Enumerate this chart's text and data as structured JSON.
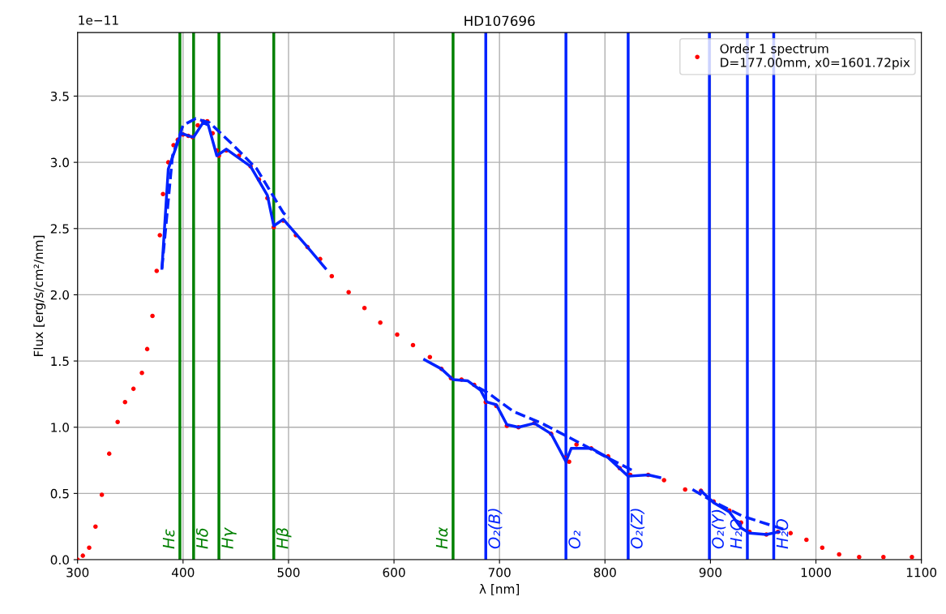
{
  "chart_data": {
    "type": "scatter",
    "title": "HD107696",
    "xlabel": "λ [nm]",
    "ylabel": "Flux [erg/s/cm²/nm]",
    "annotations": [
      "1e−11"
    ],
    "xlim": [
      300,
      1100
    ],
    "xticks": [
      300,
      400,
      500,
      600,
      700,
      800,
      900,
      1000,
      1100
    ],
    "ylim": [
      0,
      3.98
    ],
    "yticks": [
      {
        "value": 0,
        "label": "0.0"
      },
      0.5,
      {
        "value": 1,
        "label": "1.0"
      },
      1.5,
      {
        "value": 2,
        "label": "2.0"
      },
      2.5,
      {
        "value": 3,
        "label": "3.0"
      },
      3.5
    ],
    "grid": true,
    "legend": "top right",
    "series": [
      {
        "name": "Order 1 spectrum\nD=177.00mm, x0=1601.72pix",
        "marker": "circle",
        "color": "#ff0000",
        "x": [
          300,
          305,
          311,
          317,
          323,
          330,
          338,
          345,
          353,
          361,
          366,
          371,
          375,
          378,
          381,
          386,
          391,
          395,
          400,
          405,
          409,
          414,
          419,
          423,
          428,
          432,
          434,
          441,
          453,
          464,
          472,
          480,
          486,
          495,
          507,
          518,
          530,
          541,
          557,
          572,
          587,
          603,
          618,
          634,
          645,
          654,
          664,
          676,
          687,
          697,
          707,
          718,
          733,
          749,
          762,
          766,
          773,
          787,
          803,
          814,
          824,
          841,
          856,
          876,
          891,
          903,
          918,
          929,
          937,
          953,
          964,
          976,
          991,
          1006,
          1022,
          1041,
          1064,
          1091
        ],
        "values": [
          0.0,
          0.03,
          0.09,
          0.25,
          0.49,
          0.8,
          1.04,
          1.19,
          1.29,
          1.41,
          1.59,
          1.84,
          2.18,
          2.45,
          2.76,
          3.0,
          3.13,
          3.17,
          3.21,
          3.2,
          3.19,
          3.28,
          3.31,
          3.31,
          3.22,
          3.09,
          3.05,
          3.09,
          3.05,
          2.97,
          2.87,
          2.73,
          2.51,
          2.56,
          2.45,
          2.36,
          2.27,
          2.14,
          2.02,
          1.9,
          1.79,
          1.7,
          1.62,
          1.53,
          1.44,
          1.37,
          1.36,
          1.32,
          1.19,
          1.16,
          1.01,
          1.0,
          1.03,
          0.95,
          0.77,
          0.74,
          0.87,
          0.84,
          0.78,
          0.69,
          0.64,
          0.64,
          0.6,
          0.53,
          0.52,
          0.44,
          0.37,
          0.28,
          0.21,
          0.19,
          0.21,
          0.2,
          0.15,
          0.09,
          0.04,
          0.02,
          0.02,
          0.02
        ]
      },
      {
        "type": "line",
        "line_style": "solid",
        "color": "#0022ff",
        "x": [
          380,
          386,
          395,
          398,
          405,
          410,
          419,
          424,
          432,
          441,
          464,
          480,
          486,
          495,
          518,
          535,
          580,
          629,
          645,
          656,
          670,
          682,
          688,
          697,
          707,
          718,
          733,
          749,
          763,
          768,
          787,
          803,
          822,
          841,
          852,
          870,
          891,
          903,
          918,
          929,
          937,
          953,
          965
        ],
        "values": [
          2.2,
          2.95,
          3.15,
          3.22,
          3.2,
          3.19,
          3.3,
          3.28,
          3.05,
          3.1,
          2.97,
          2.75,
          2.52,
          2.57,
          2.36,
          2.2,
          null,
          1.51,
          1.44,
          1.36,
          1.35,
          1.28,
          1.19,
          1.17,
          1.02,
          1.0,
          1.03,
          0.95,
          0.74,
          0.84,
          0.84,
          0.77,
          0.63,
          0.64,
          0.62,
          null,
          0.52,
          0.43,
          0.36,
          0.24,
          0.2,
          0.19,
          0.21
        ]
      },
      {
        "type": "line",
        "line_style": "dashed",
        "color": "#0022ff",
        "x": [
          380,
          390,
          400,
          412,
          425,
          445,
          470,
          495,
          500,
          590,
          680,
          689,
          713,
          740,
          774,
          800,
          827,
          855,
          883,
          900,
          930,
          969
        ],
        "values": [
          2.2,
          3.05,
          3.28,
          3.33,
          3.3,
          3.15,
          2.95,
          2.62,
          2.58,
          null,
          1.3,
          1.26,
          1.12,
          1.03,
          0.89,
          0.78,
          0.67,
          null,
          0.53,
          0.45,
          0.33,
          0.23
        ]
      }
    ],
    "ref_lines": [
      {
        "axis": "x",
        "value": 397,
        "label": "Hε",
        "color": "#008000"
      },
      {
        "axis": "x",
        "value": 410,
        "label": "Hδ",
        "color": "#008000"
      },
      {
        "axis": "x",
        "value": 434,
        "label": "Hγ",
        "color": "#008000"
      },
      {
        "axis": "x",
        "value": 486,
        "label": "Hβ",
        "color": "#008000"
      },
      {
        "axis": "x",
        "value": 656,
        "label": "Hα",
        "color": "#008000"
      },
      {
        "axis": "x",
        "value": 687,
        "label": "O₂(B)",
        "color": "#0022ff"
      },
      {
        "axis": "x",
        "value": 763,
        "label": "O₂",
        "color": "#0022ff"
      },
      {
        "axis": "x",
        "value": 822,
        "label": "O₂(Z)",
        "color": "#0022ff"
      },
      {
        "axis": "x",
        "value": 899,
        "label": "O₂(Y)",
        "color": "#0022ff"
      },
      {
        "axis": "x",
        "value": 935,
        "label": "H₂O",
        "color": "#0022ff"
      },
      {
        "axis": "x",
        "value": 960,
        "label": "H₂O",
        "color": "#0022ff"
      }
    ]
  }
}
